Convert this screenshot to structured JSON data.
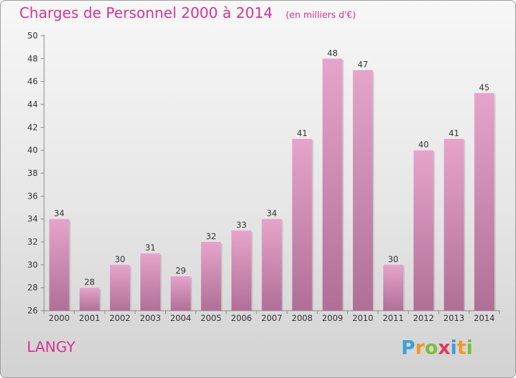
{
  "header": {
    "title": "Charges de Personnel 2000 à 2014",
    "subtitle": "(en milliers d'€)"
  },
  "footer": {
    "commune": "LANGY",
    "brand": "Proxiti",
    "brand_letters": [
      {
        "ch": "P",
        "color": "#3aa0d8"
      },
      {
        "ch": "r",
        "color": "#f29a1e"
      },
      {
        "ch": "o",
        "color": "#7bbf3a"
      },
      {
        "ch": "x",
        "color": "#e23a5b"
      },
      {
        "ch": "i",
        "color": "#3aa0d8"
      },
      {
        "ch": "t",
        "color": "#f29a1e"
      },
      {
        "ch": "i",
        "color": "#7bbf3a"
      }
    ]
  },
  "colors": {
    "accent": "#d5358f",
    "bar_top": "#e6a4cb",
    "bar_bottom": "#b06f96"
  },
  "chart_data": {
    "type": "bar",
    "title": "Charges de Personnel 2000 à 2014",
    "subtitle": "(en milliers d'€)",
    "xlabel": "",
    "ylabel": "",
    "categories": [
      "2000",
      "2001",
      "2002",
      "2003",
      "2004",
      "2005",
      "2006",
      "2007",
      "2008",
      "2009",
      "2010",
      "2011",
      "2012",
      "2013",
      "2014"
    ],
    "values": [
      34,
      28,
      30,
      31,
      29,
      32,
      33,
      34,
      41,
      48,
      47,
      30,
      40,
      41,
      45
    ],
    "ylim": [
      26,
      50
    ],
    "yticks": [
      26,
      28,
      30,
      32,
      34,
      36,
      38,
      40,
      42,
      44,
      46,
      48,
      50
    ],
    "grid": false,
    "legend": "none"
  }
}
